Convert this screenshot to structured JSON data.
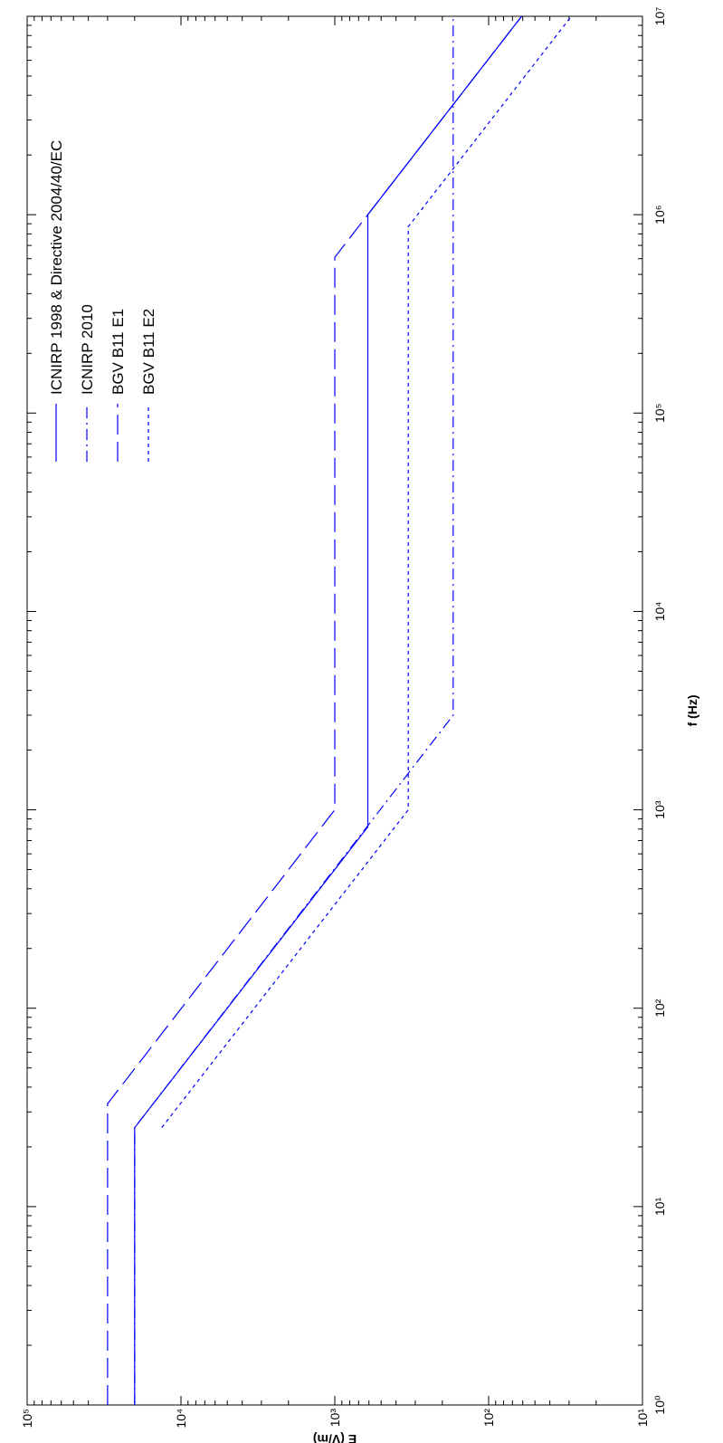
{
  "chart_data": {
    "type": "line",
    "xlabel": "f (Hz)",
    "ylabel": "E (V/m)",
    "xscale": "log",
    "yscale": "log",
    "xlim": [
      1,
      10000000
    ],
    "ylim": [
      10,
      100000
    ],
    "xticks": [
      {
        "value": 1,
        "label": "10⁰"
      },
      {
        "value": 10,
        "label": "10¹"
      },
      {
        "value": 100,
        "label": "10²"
      },
      {
        "value": 1000,
        "label": "10³"
      },
      {
        "value": 10000,
        "label": "10⁴"
      },
      {
        "value": 100000,
        "label": "10⁵"
      },
      {
        "value": 1000000,
        "label": "10⁶"
      },
      {
        "value": 10000000,
        "label": "10⁷"
      }
    ],
    "yticks": [
      {
        "value": 10,
        "label": "10¹"
      },
      {
        "value": 100,
        "label": "10²"
      },
      {
        "value": 1000,
        "label": "10³"
      },
      {
        "value": 10000,
        "label": "10⁴"
      },
      {
        "value": 100000,
        "label": "10⁵"
      }
    ],
    "legend": "upper right",
    "rotation": -90,
    "series": [
      {
        "name": "ICNIRP 1998 & Directive 2004/40/EC",
        "color": "#0000ff",
        "dash": "none",
        "x": [
          1,
          25,
          820,
          1000000,
          10000000
        ],
        "values": [
          20000,
          20000,
          610,
          610,
          61
        ]
      },
      {
        "name": "ICNIRP 2010",
        "color": "#0000ff",
        "dash": "12,5,2,5",
        "x": [
          1,
          25,
          3000,
          10000000
        ],
        "values": [
          20000,
          20000,
          170,
          170
        ]
      },
      {
        "name": "BGV B11 E1",
        "color": "#0000ff",
        "dash": "22,8",
        "x": [
          1,
          33,
          1000,
          610000,
          1000000,
          10000000
        ],
        "values": [
          30000,
          30000,
          1000,
          1000,
          610,
          61
        ]
      },
      {
        "name": "BGV B11 E2",
        "color": "#0000ff",
        "dash": "4,4",
        "x": [
          25,
          1000,
          870000,
          10000000
        ],
        "values": [
          13333,
          333,
          333,
          29
        ]
      }
    ]
  }
}
